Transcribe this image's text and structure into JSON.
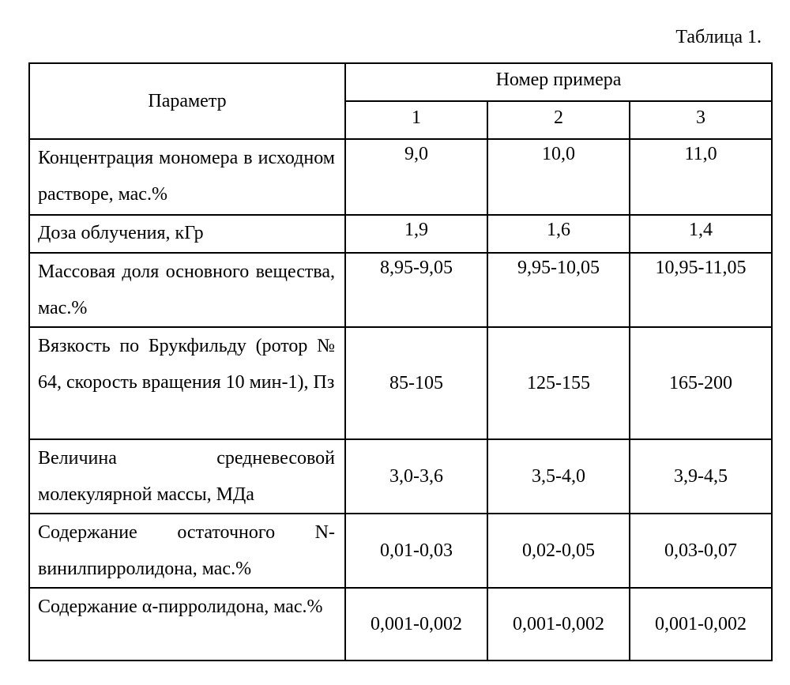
{
  "caption": "Таблица 1.",
  "table": {
    "param_header": "Параметр",
    "group_header": "Номер примера",
    "columns": [
      "1",
      "2",
      "3"
    ],
    "rows": [
      {
        "param": "Концентрация мономера в исходном растворе, мас.%",
        "values": [
          "9,0",
          "10,0",
          "11,0"
        ]
      },
      {
        "param": "Доза облучения, кГр",
        "values": [
          "1,9",
          "1,6",
          "1,4"
        ]
      },
      {
        "param": "Массовая доля основного вещества, мас.%",
        "values": [
          "8,95-9,05",
          "9,95-10,05",
          "10,95-11,05"
        ]
      },
      {
        "param": "Вязкость по Брукфильду (ротор № 64, скорость вращения 10 мин-1), Пз",
        "values": [
          "85-105",
          "125-155",
          "165-200"
        ]
      },
      {
        "param": "Величина средневесовой молекулярной массы, МДа",
        "values": [
          "3,0-3,6",
          "3,5-4,0",
          "3,9-4,5"
        ]
      },
      {
        "param": "Содержание остаточного N-винилпирролидона, мас.%",
        "values": [
          "0,01-0,03",
          "0,02-0,05",
          "0,03-0,07"
        ]
      },
      {
        "param": "Содержание α-пирролидона, мас.%",
        "values": [
          "0,001-0,002",
          "0,001-0,002",
          "0,001-0,002"
        ]
      }
    ]
  }
}
